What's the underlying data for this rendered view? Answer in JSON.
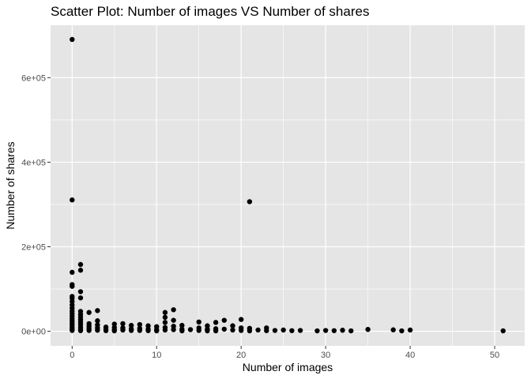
{
  "chart_data": {
    "type": "scatter",
    "title": "Scatter Plot: Number of images VS Number of shares",
    "xlabel": "Number of images",
    "ylabel": "Number of shares",
    "xlim": [
      -2.55,
      53.55
    ],
    "ylim": [
      -34400,
      724000
    ],
    "x_ticks": [
      0,
      10,
      20,
      30,
      40,
      50
    ],
    "x_tick_labels": [
      "0",
      "10",
      "20",
      "30",
      "40",
      "50"
    ],
    "x_minor_ticks": [
      5,
      15,
      25,
      35,
      45
    ],
    "y_ticks": [
      0,
      200000,
      400000,
      600000
    ],
    "y_tick_labels": [
      "0e+00",
      "2e+05",
      "4e+05",
      "6e+05"
    ],
    "y_minor_ticks": [
      100000,
      300000,
      500000
    ],
    "grid": true,
    "colors": {
      "panel": "#e5e5e5",
      "grid": "#ffffff",
      "point": "#000000",
      "tick_text": "#4d4d4d"
    },
    "points": [
      [
        0,
        690400
      ],
      [
        0,
        310800
      ],
      [
        0,
        139600
      ],
      [
        0,
        110500
      ],
      [
        0,
        106400
      ],
      [
        0,
        82500
      ],
      [
        0,
        78000
      ],
      [
        0,
        70500
      ],
      [
        0,
        62500
      ],
      [
        0,
        55000
      ],
      [
        0,
        48000
      ],
      [
        0,
        42000
      ],
      [
        0,
        36000
      ],
      [
        0,
        30000
      ],
      [
        0,
        25000
      ],
      [
        0,
        20000
      ],
      [
        0,
        15000
      ],
      [
        0,
        10000
      ],
      [
        0,
        6000
      ],
      [
        0,
        2000
      ],
      [
        1,
        158000
      ],
      [
        1,
        144500
      ],
      [
        1,
        93700
      ],
      [
        1,
        79000
      ],
      [
        1,
        47000
      ],
      [
        1,
        40000
      ],
      [
        1,
        34000
      ],
      [
        1,
        28000
      ],
      [
        1,
        22000
      ],
      [
        1,
        16000
      ],
      [
        1,
        10000
      ],
      [
        1,
        5000
      ],
      [
        1,
        1500
      ],
      [
        2,
        44500
      ],
      [
        2,
        18000
      ],
      [
        2,
        12000
      ],
      [
        2,
        7000
      ],
      [
        2,
        2000
      ],
      [
        3,
        49000
      ],
      [
        3,
        25000
      ],
      [
        3,
        15000
      ],
      [
        3,
        8000
      ],
      [
        3,
        2500
      ],
      [
        4,
        10000
      ],
      [
        4,
        5000
      ],
      [
        4,
        1500
      ],
      [
        5,
        17000
      ],
      [
        5,
        9000
      ],
      [
        5,
        4000
      ],
      [
        5,
        1000
      ],
      [
        6,
        18000
      ],
      [
        6,
        8000
      ],
      [
        6,
        3000
      ],
      [
        7,
        14000
      ],
      [
        7,
        6000
      ],
      [
        7,
        2000
      ],
      [
        8,
        16000
      ],
      [
        8,
        7000
      ],
      [
        8,
        2000
      ],
      [
        9,
        13000
      ],
      [
        9,
        5000
      ],
      [
        9,
        1500
      ],
      [
        10,
        11000
      ],
      [
        10,
        4000
      ],
      [
        10,
        1000
      ],
      [
        11,
        44500
      ],
      [
        11,
        33000
      ],
      [
        11,
        21000
      ],
      [
        11,
        9000
      ],
      [
        11,
        3000
      ],
      [
        12,
        51000
      ],
      [
        12,
        26000
      ],
      [
        12,
        12000
      ],
      [
        12,
        4000
      ],
      [
        13,
        14000
      ],
      [
        13,
        5000
      ],
      [
        13,
        1000
      ],
      [
        14,
        4000
      ],
      [
        15,
        22000
      ],
      [
        15,
        8000
      ],
      [
        15,
        2000
      ],
      [
        16,
        13000
      ],
      [
        16,
        5000
      ],
      [
        16,
        1000
      ],
      [
        17,
        21000
      ],
      [
        17,
        6000
      ],
      [
        17,
        1000
      ],
      [
        18,
        26000
      ],
      [
        18,
        5000
      ],
      [
        19,
        13000
      ],
      [
        19,
        3000
      ],
      [
        20,
        28000
      ],
      [
        20,
        8000
      ],
      [
        20,
        2000
      ],
      [
        21,
        306600
      ],
      [
        21,
        7000
      ],
      [
        21,
        1000
      ],
      [
        22,
        3000
      ],
      [
        23,
        8000
      ],
      [
        23,
        1500
      ],
      [
        24,
        2000
      ],
      [
        25,
        3000
      ],
      [
        26,
        1500
      ],
      [
        27,
        2000
      ],
      [
        29,
        1000
      ],
      [
        30,
        2000
      ],
      [
        31,
        1500
      ],
      [
        32,
        2500
      ],
      [
        33,
        1000
      ],
      [
        35,
        4500
      ],
      [
        38,
        3500
      ],
      [
        39,
        1000
      ],
      [
        40,
        3000
      ],
      [
        51,
        1000
      ]
    ]
  }
}
